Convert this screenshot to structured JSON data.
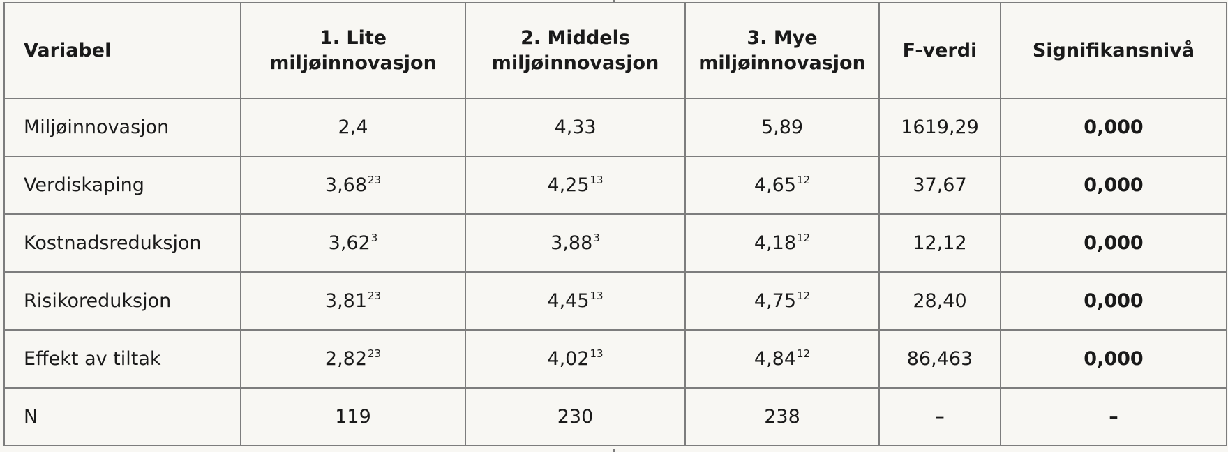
{
  "table": {
    "header": [
      [
        "Variabel"
      ],
      [
        "1. Lite",
        "miljøinnovasjon"
      ],
      [
        "2. Middels",
        "miljøinnovasjon"
      ],
      [
        "3. Mye",
        "miljøinnovasjon"
      ],
      [
        "F-verdi"
      ],
      [
        "Signifikansnivå"
      ]
    ],
    "rows": [
      [
        {
          "text": "Miljøinnovasjon"
        },
        {
          "text": "2,4"
        },
        {
          "text": "4,33"
        },
        {
          "text": "5,89"
        },
        {
          "text": "1619,29"
        },
        {
          "text": "0,000"
        }
      ],
      [
        {
          "text": "Verdiskaping"
        },
        {
          "text": "3,68",
          "sup": "23"
        },
        {
          "text": "4,25",
          "sup": "13"
        },
        {
          "text": "4,65",
          "sup": "12"
        },
        {
          "text": "37,67"
        },
        {
          "text": "0,000"
        }
      ],
      [
        {
          "text": "Kostnadsreduksjon"
        },
        {
          "text": "3,62",
          "sup": "3"
        },
        {
          "text": "3,88",
          "sup": "3"
        },
        {
          "text": "4,18",
          "sup": "12"
        },
        {
          "text": "12,12"
        },
        {
          "text": "0,000"
        }
      ],
      [
        {
          "text": "Risikoreduksjon"
        },
        {
          "text": "3,81",
          "sup": "23"
        },
        {
          "text": "4,45",
          "sup": "13"
        },
        {
          "text": "4,75",
          "sup": "12"
        },
        {
          "text": "28,40"
        },
        {
          "text": "0,000"
        }
      ],
      [
        {
          "text": "Effekt av tiltak"
        },
        {
          "text": "2,82",
          "sup": "23"
        },
        {
          "text": "4,02",
          "sup": "13"
        },
        {
          "text": "4,84",
          "sup": "12"
        },
        {
          "text": "86,463"
        },
        {
          "text": "0,000"
        }
      ],
      [
        {
          "text": "N"
        },
        {
          "text": "119"
        },
        {
          "text": "230"
        },
        {
          "text": "238"
        },
        {
          "text": "–"
        },
        {
          "text": "–"
        }
      ]
    ]
  }
}
